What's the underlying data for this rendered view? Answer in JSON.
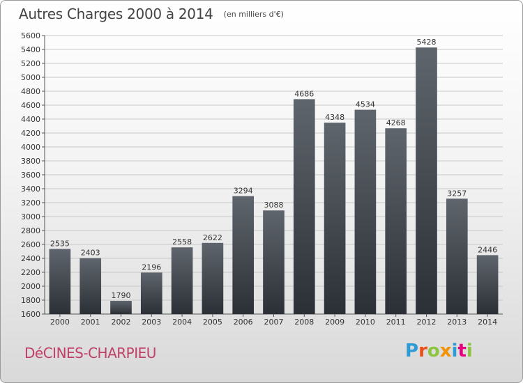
{
  "header": {
    "title": "Autres Charges 2000 à 2014",
    "subtitle": "(en milliers d'€)"
  },
  "footer": {
    "commune": "DéCINES-CHARPIEU",
    "brand": "Proxiti",
    "brand_colors": [
      "#2e9bd6",
      "#e94e1b",
      "#8cc63f",
      "#f39200",
      "#2e9bd6",
      "#e6007e",
      "#8cc63f"
    ]
  },
  "chart_data": {
    "type": "bar",
    "title": "Autres Charges 2000 à 2014",
    "subtitle": "(en milliers d'€)",
    "xlabel": "",
    "ylabel": "",
    "categories": [
      "2000",
      "2001",
      "2002",
      "2003",
      "2004",
      "2005",
      "2006",
      "2007",
      "2008",
      "2009",
      "2010",
      "2011",
      "2012",
      "2013",
      "2014"
    ],
    "values": [
      2535,
      2403,
      1790,
      2196,
      2558,
      2622,
      3294,
      3088,
      4686,
      4348,
      4534,
      4268,
      5428,
      3257,
      2446
    ],
    "ylim": [
      1600,
      5600
    ],
    "yticks": [
      1600,
      1800,
      2000,
      2200,
      2400,
      2600,
      2800,
      3000,
      3200,
      3400,
      3600,
      3800,
      4000,
      4200,
      4400,
      4600,
      4800,
      5000,
      5200,
      5400,
      5600
    ],
    "grid": true,
    "bar_color_top": "#5f656c",
    "bar_color_bottom": "#2b3036"
  }
}
